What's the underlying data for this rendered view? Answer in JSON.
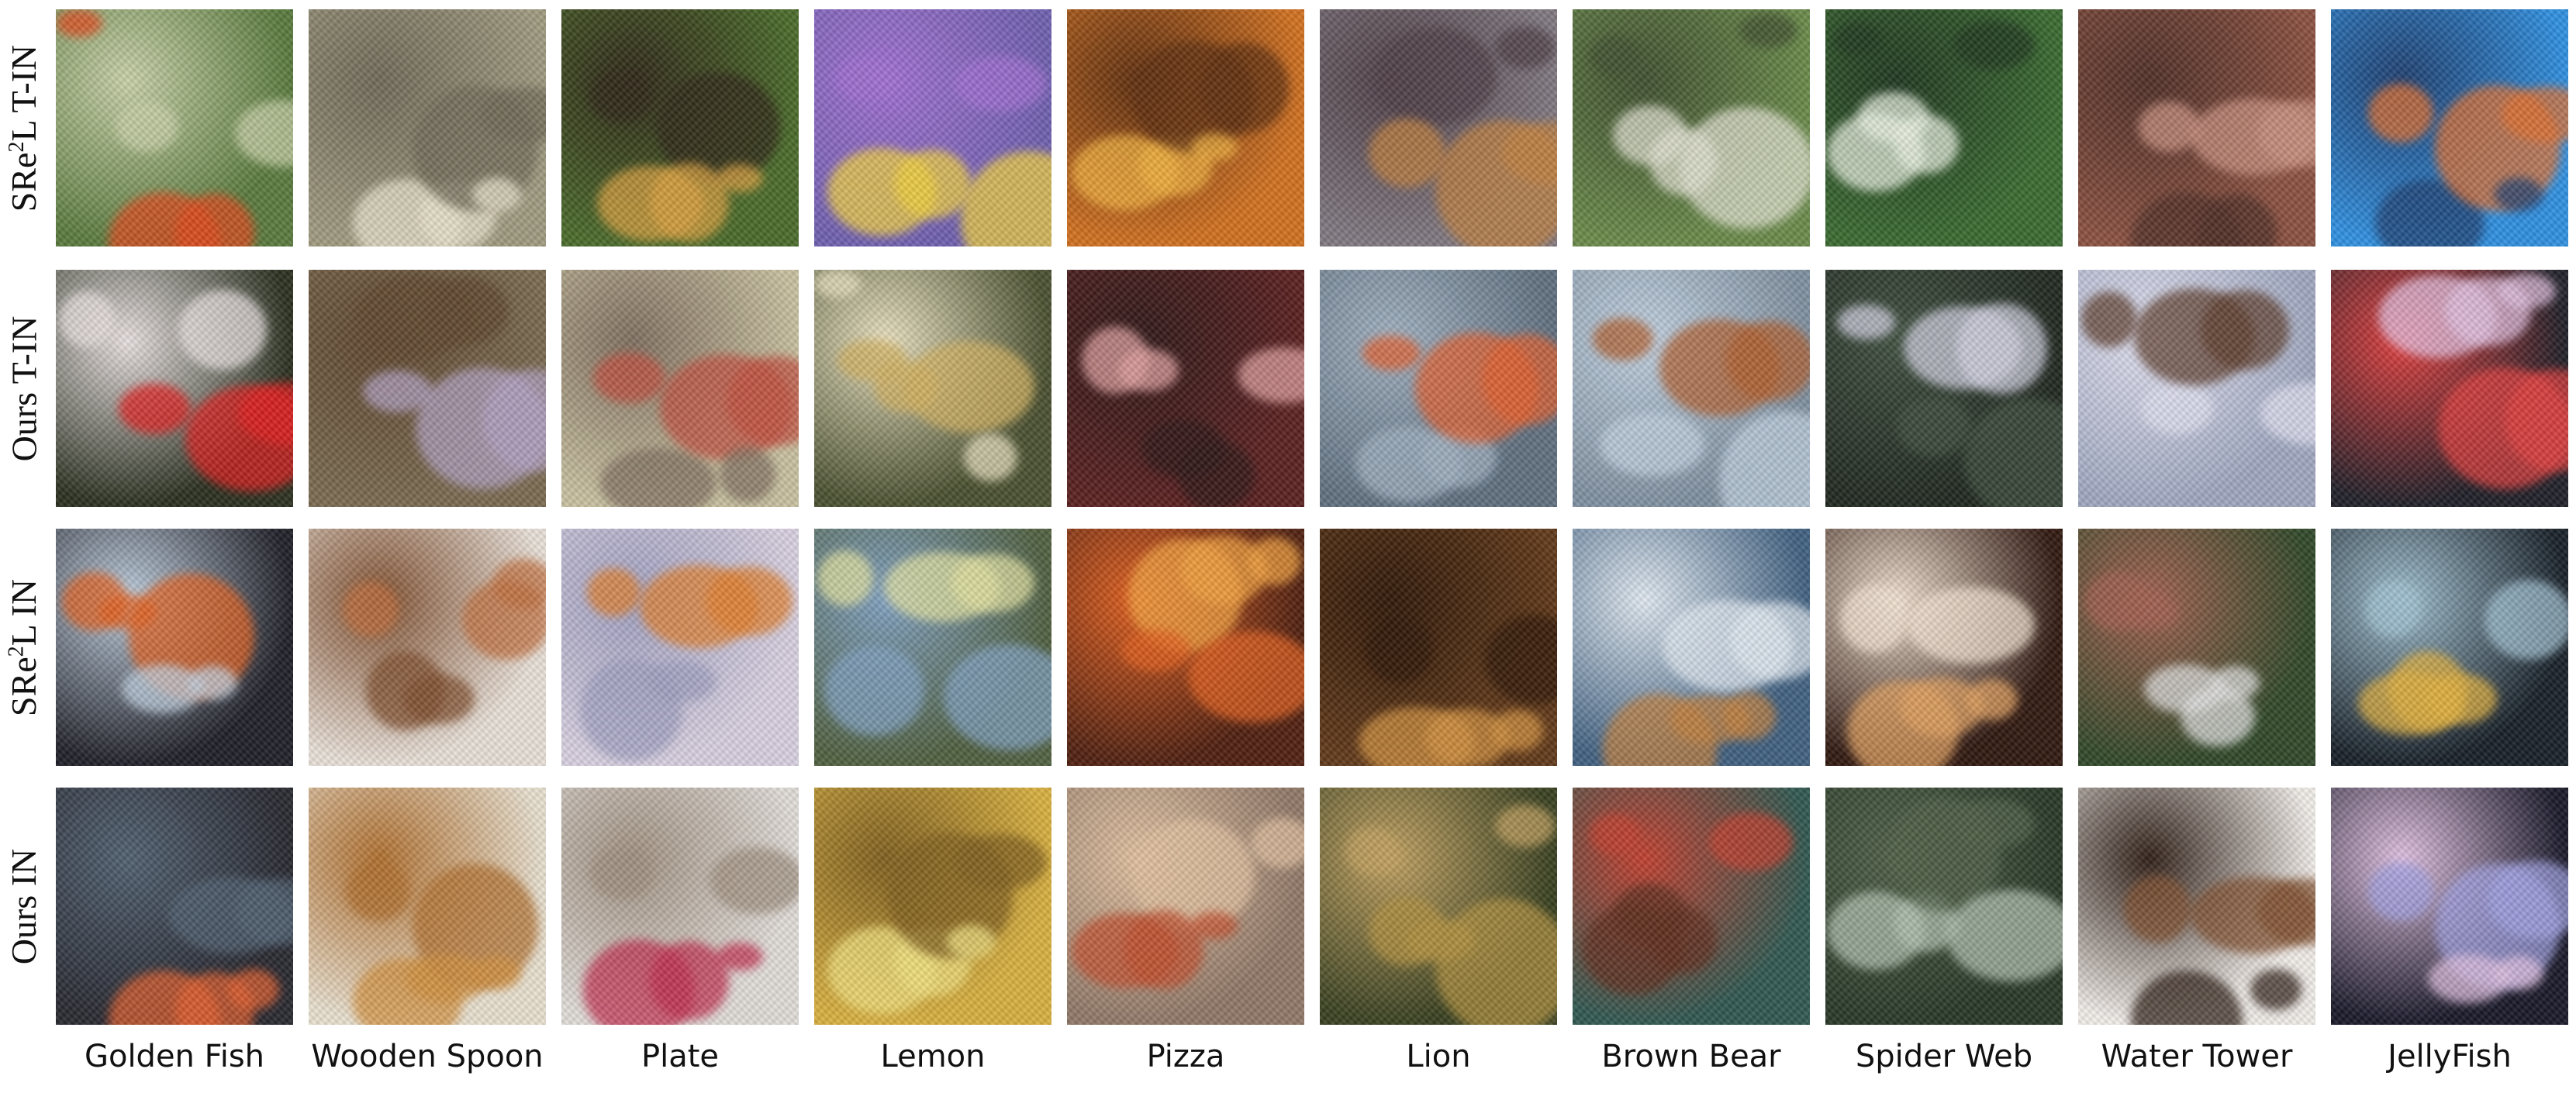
{
  "rows": [
    {
      "base": "SRe",
      "sup": "2",
      "rest": "L T-IN"
    },
    {
      "base": "Ours T-IN",
      "sup": "",
      "rest": ""
    },
    {
      "base": "SRe",
      "sup": "2",
      "rest": "L IN"
    },
    {
      "base": "Ours IN",
      "sup": "",
      "rest": ""
    }
  ],
  "classes": [
    "Golden Fish",
    "Wooden Spoon",
    "Plate",
    "Lemon",
    "Pizza",
    "Lion",
    "Brown Bear",
    "Spider Web",
    "Water Tower",
    "JellyFish"
  ],
  "tile_colors": [
    [
      [
        "#5a7a3e",
        "#e04a1e",
        "#c8d0a8"
      ],
      [
        "#a09a80",
        "#e8e2cc",
        "#706a58"
      ],
      [
        "#4a6a2a",
        "#d8a040",
        "#302818"
      ],
      [
        "#7060b0",
        "#f0d040",
        "#a070d0"
      ],
      [
        "#d07020",
        "#f0b040",
        "#603010"
      ],
      [
        "#807880",
        "#c08040",
        "#504048"
      ],
      [
        "#6a8a4a",
        "#e0e0d0",
        "#405030"
      ],
      [
        "#3a6a30",
        "#e8f0e0",
        "#203820"
      ],
      [
        "#8a5040",
        "#c89080",
        "#503028"
      ],
      [
        "#3090e0",
        "#e07030",
        "#204070"
      ]
    ],
    [
      [
        "#2a3020",
        "#e02020",
        "#e8e0e0"
      ],
      [
        "#7a6a50",
        "#b0a0c0",
        "#604830"
      ],
      [
        "#c8c0a0",
        "#c05040",
        "#807060"
      ],
      [
        "#4a5030",
        "#d0b060",
        "#e8e0c0"
      ],
      [
        "#5a2020",
        "#e0a0a0",
        "#301818"
      ],
      [
        "#607080",
        "#e06030",
        "#a0b0c0"
      ],
      [
        "#8090a0",
        "#b06030",
        "#c0d0e0"
      ],
      [
        "#202820",
        "#d0d0e0",
        "#405040"
      ],
      [
        "#a0a8c0",
        "#604030",
        "#e0e0f0"
      ],
      [
        "#202028",
        "#e0c0e0",
        "#e04040"
      ]
    ],
    [
      [
        "#202028",
        "#e06020",
        "#c0d0e0"
      ],
      [
        "#e8e0d8",
        "#c07040",
        "#805030"
      ],
      [
        "#d8d0e0",
        "#e08030",
        "#a0a0c0"
      ],
      [
        "#506040",
        "#e0e0a0",
        "#80a0c0"
      ],
      [
        "#502010",
        "#f0a040",
        "#e06020"
      ],
      [
        "#603818",
        "#d09040",
        "#301808"
      ],
      [
        "#406080",
        "#c08040",
        "#e0e8f0"
      ],
      [
        "#301810",
        "#e0a060",
        "#f0e0d0"
      ],
      [
        "#304828",
        "#e0e0e0",
        "#a06050"
      ],
      [
        "#182028",
        "#e0b040",
        "#a0c0d0"
      ]
    ],
    [
      [
        "#282830",
        "#e06030",
        "#506070"
      ],
      [
        "#e8e0d0",
        "#d09040",
        "#b07030"
      ],
      [
        "#e0dcd8",
        "#c03050",
        "#a09080"
      ],
      [
        "#d8b040",
        "#f0e080",
        "#806020"
      ],
      [
        "#907868",
        "#c05030",
        "#e0c0a0"
      ],
      [
        "#384020",
        "#b09040",
        "#c0a060"
      ],
      [
        "#305850",
        "#603020",
        "#c04030"
      ],
      [
        "#283828",
        "#b0c0b0",
        "#506048"
      ],
      [
        "#f0ece8",
        "#805030",
        "#302018"
      ],
      [
        "#181828",
        "#a0a0e0",
        "#e0c0e0"
      ]
    ]
  ]
}
